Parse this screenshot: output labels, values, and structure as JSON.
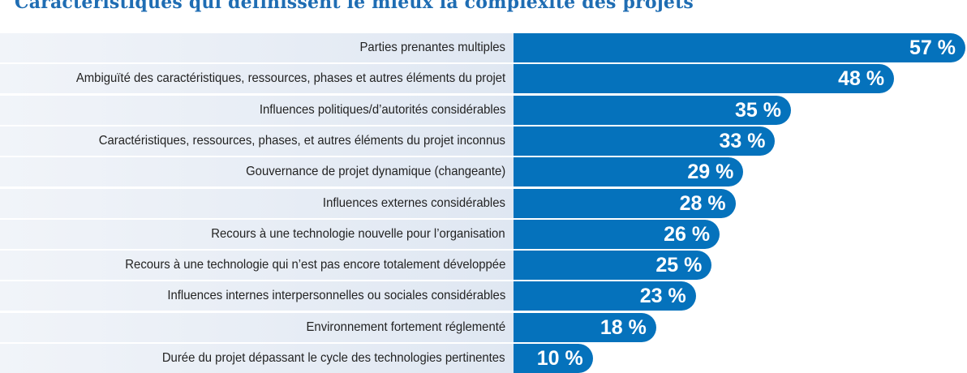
{
  "chart_data": {
    "type": "bar",
    "orientation": "horizontal",
    "title": "Caractéristiques qui définissent le mieux la complexité des projets",
    "categories": [
      "Parties prenantes multiples",
      "Ambiguïté des caractéristiques, ressources, phases et autres éléments du projet",
      "Influences politiques/d’autorités considérables",
      "Caractéristiques, ressources, phases, et autres éléments du projet inconnus",
      "Gouvernance de projet dynamique (changeante)",
      "Influences externes considérables",
      "Recours à une technologie nouvelle pour l’organisation",
      "Recours à une technologie qui n’est pas encore totalement développée",
      "Influences internes interpersonnelles ou sociales considérables",
      "Environnement fortement réglementé",
      "Durée du projet dépassant le cycle des technologies pertinentes"
    ],
    "values": [
      57,
      48,
      35,
      33,
      29,
      28,
      26,
      25,
      23,
      18,
      10
    ],
    "value_labels": [
      "57 %",
      "48 %",
      "35 %",
      "33 %",
      "29 %",
      "28 %",
      "26 %",
      "25 %",
      "23 %",
      "18 %",
      "10 %"
    ],
    "unit": "%",
    "xlim": [
      0,
      57
    ],
    "grid": false,
    "bar_color": "#0572bc",
    "title_color": "#1f6db3"
  }
}
